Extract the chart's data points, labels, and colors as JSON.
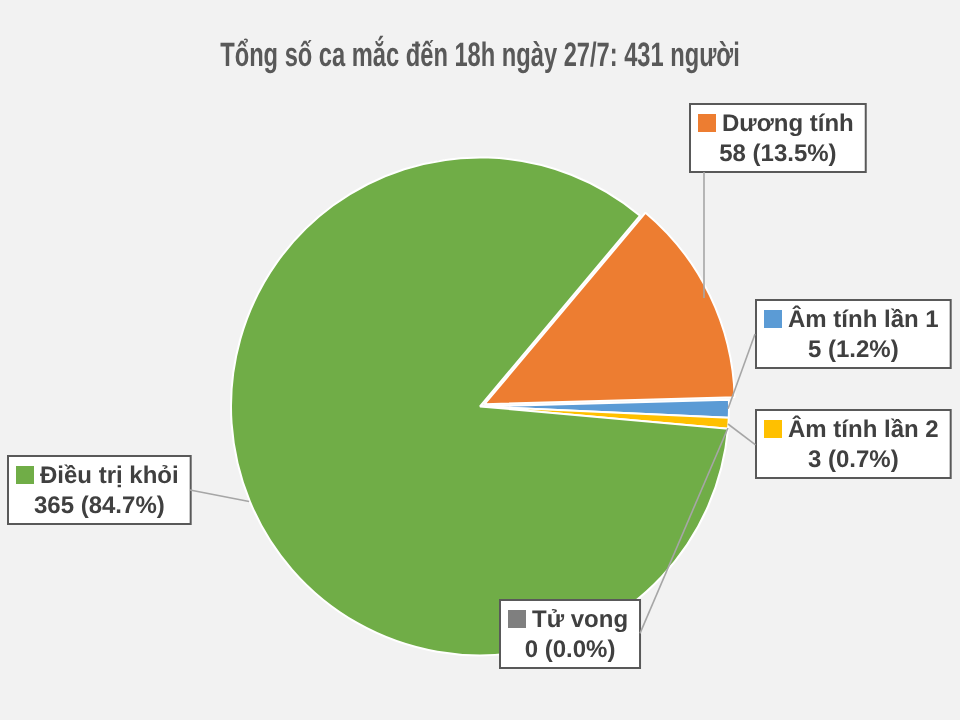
{
  "chart_data": {
    "type": "pie",
    "title": "Tổng số ca mắc đến 18h ngày 27/7: 431 người",
    "categories": [
      "Dương tính",
      "Âm tính lần 1",
      "Âm tính lần 2",
      "Tử vong",
      "Điều trị khỏi"
    ],
    "values": [
      58,
      5,
      3,
      0,
      365
    ],
    "value_labels": [
      "58 (13.5%)",
      "5 (1.2%)",
      "3 (0.7%)",
      "0 (0.0%)",
      "365 (84.7%)"
    ],
    "colors": [
      "#ed7d31",
      "#5b9bd5",
      "#ffc000",
      "#7f7f7f",
      "#70ad47"
    ],
    "legend": "right"
  }
}
